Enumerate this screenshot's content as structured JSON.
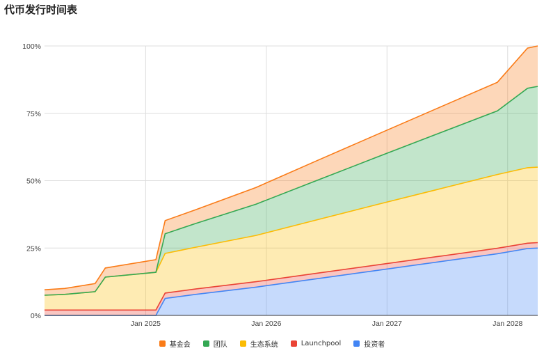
{
  "chart_data": {
    "type": "area",
    "stacked": true,
    "title": "代币发行时间表",
    "xlabel": "",
    "ylabel": "",
    "x": [
      "2024-03-01",
      "2024-05-01",
      "2024-08-01",
      "2024-09-01",
      "2025-02-01",
      "2025-03-01",
      "2025-06-01",
      "2025-12-01",
      "2026-06-01",
      "2026-12-01",
      "2027-06-01",
      "2027-12-01",
      "2028-03-01",
      "2028-04-01"
    ],
    "xlim": [
      "2024-03-01",
      "2028-04-01"
    ],
    "x_ticks": [
      "Jan 2025",
      "Jan 2026",
      "Jan 2027",
      "Jan 2028"
    ],
    "x_tick_dates": [
      "2025-01-01",
      "2026-01-01",
      "2027-01-01",
      "2028-01-01"
    ],
    "ylim": [
      0,
      100
    ],
    "y_ticks": [
      "0%",
      "25%",
      "50%",
      "75%",
      "100%"
    ],
    "y_tick_values": [
      0,
      25,
      50,
      75,
      100
    ],
    "grid": true,
    "legend_position": "bottom",
    "series": [
      {
        "name": "投资者",
        "color": "#4285f4",
        "values": [
          0,
          0,
          0,
          0,
          0,
          6.3,
          7.8,
          10.5,
          13.6,
          16.7,
          19.8,
          22.9,
          24.8,
          25.0
        ]
      },
      {
        "name": "Launchpool",
        "color": "#ea4335",
        "values": [
          2,
          2,
          2,
          2,
          2,
          2,
          2,
          2,
          2,
          2,
          2,
          2,
          2,
          2
        ]
      },
      {
        "name": "生态系统",
        "color": "#fbbc04",
        "values": [
          5.5,
          5.8,
          6.8,
          12.2,
          14,
          14.7,
          15.5,
          17.2,
          19.8,
          22.4,
          24.9,
          27.4,
          28.0,
          28.0
        ]
      },
      {
        "name": "团队",
        "color": "#34a853",
        "values": [
          0,
          0,
          0,
          0,
          0,
          7.3,
          8.8,
          11.6,
          14.6,
          17.6,
          20.6,
          23.6,
          29.5,
          30.0
        ]
      },
      {
        "name": "基金会",
        "color": "#fa7b17",
        "values": [
          2,
          2.2,
          3,
          3.4,
          4.7,
          4.9,
          5.1,
          6.2,
          7.3,
          8.4,
          9.5,
          10.6,
          14.9,
          15.0
        ]
      }
    ],
    "legend_order": [
      "基金会",
      "团队",
      "生态系统",
      "Launchpool",
      "投资者"
    ]
  }
}
